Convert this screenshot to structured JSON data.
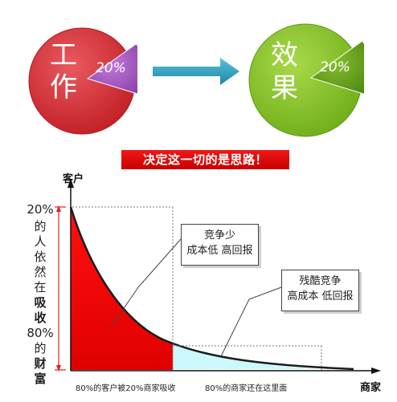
{
  "top": {
    "left_pie": {
      "chars": [
        "工",
        "作"
      ],
      "percent": "20%",
      "main_color": "#d62a31",
      "slice_color": "#9b4fb2"
    },
    "right_pie": {
      "chars": [
        "效",
        "果"
      ],
      "percent": "20%",
      "main_color": "#84c225",
      "slice_color": "#5f9e1a"
    },
    "arrow_color": "#37a3c1"
  },
  "banner": "决定这一切的是思路！",
  "axes": {
    "y_label": "客户",
    "x_label": "商家",
    "tick_top": "20%",
    "tick_bottom": "80%"
  },
  "left_text": {
    "line1": "的",
    "line2": "人",
    "line3": "依",
    "line4": "然",
    "line5": "在",
    "line6": "吸",
    "line7": "收",
    "line8": "的",
    "line9": "财",
    "line10": "富"
  },
  "callouts": {
    "first": {
      "line1": "竞争少",
      "line2": "成本低 高回报"
    },
    "second": {
      "line1": "残酷竞争",
      "line2": "高成本 低回报"
    }
  },
  "captions": {
    "left": "80%的客户被20%商家吸收",
    "right": "80%的商家还在这里面"
  },
  "colors": {
    "red_area": "#ff0000",
    "cyan_area": "#ccf7fb",
    "axis_red": "#e02020"
  }
}
